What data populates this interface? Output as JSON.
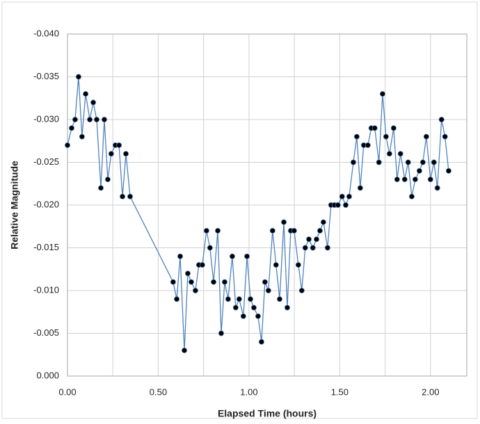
{
  "chart_data": {
    "type": "line",
    "x_label": "Elapsed Time (hours)",
    "y_label": "Relative Magnitude",
    "line_color": "#4f81bd",
    "marker_color": "#000000",
    "grid": true,
    "xlim": [
      0,
      2.2
    ],
    "ylim": [
      0,
      -0.04
    ],
    "xticks": [
      {
        "value": 0,
        "label": "0.00"
      },
      {
        "value": 0.5,
        "label": "0.50"
      },
      {
        "value": 1,
        "label": "1.00"
      },
      {
        "value": 1.5,
        "label": "1.50"
      },
      {
        "value": 2,
        "label": "2.00"
      }
    ],
    "x_minor_ticks": [
      0.25,
      0.75,
      1.25,
      1.75
    ],
    "yticks": [
      {
        "value": 0,
        "label": "0.000"
      },
      {
        "value": -0.005,
        "label": "-0.005"
      },
      {
        "value": -0.01,
        "label": "-0.010"
      },
      {
        "value": -0.015,
        "label": "-0.015"
      },
      {
        "value": -0.02,
        "label": "-0.020"
      },
      {
        "value": -0.025,
        "label": "-0.025"
      },
      {
        "value": -0.03,
        "label": "-0.030"
      },
      {
        "value": -0.035,
        "label": "-0.035"
      },
      {
        "value": -0.04,
        "label": "-0.040"
      }
    ],
    "x": [
      0,
      0.023,
      0.042,
      0.061,
      0.08,
      0.1,
      0.123,
      0.142,
      0.161,
      0.184,
      0.203,
      0.222,
      0.241,
      0.264,
      0.284,
      0.303,
      0.322,
      0.345,
      0.582,
      0.602,
      0.621,
      0.644,
      0.663,
      0.682,
      0.705,
      0.724,
      0.743,
      0.766,
      0.785,
      0.805,
      0.828,
      0.847,
      0.866,
      0.885,
      0.908,
      0.927,
      0.946,
      0.969,
      0.989,
      1.008,
      1.027,
      1.05,
      1.069,
      1.088,
      1.107,
      1.13,
      1.149,
      1.169,
      1.192,
      1.211,
      1.23,
      1.249,
      1.272,
      1.291,
      1.31,
      1.33,
      1.352,
      1.372,
      1.391,
      1.41,
      1.433,
      1.452,
      1.471,
      1.49,
      1.513,
      1.533,
      1.552,
      1.575,
      1.594,
      1.613,
      1.632,
      1.655,
      1.674,
      1.693,
      1.716,
      1.736,
      1.755,
      1.774,
      1.797,
      1.816,
      1.835,
      1.858,
      1.877,
      1.897,
      1.916,
      1.939,
      1.958,
      1.977,
      2.0,
      2.019,
      2.038,
      2.061,
      2.08,
      2.1
    ],
    "values": [
      -0.027,
      -0.029,
      -0.03,
      -0.035,
      -0.028,
      -0.033,
      -0.03,
      -0.032,
      -0.03,
      -0.022,
      -0.03,
      -0.023,
      -0.026,
      -0.027,
      -0.027,
      -0.021,
      -0.026,
      -0.021,
      -0.011,
      -0.009,
      -0.014,
      -0.003,
      -0.012,
      -0.011,
      -0.01,
      -0.013,
      -0.013,
      -0.017,
      -0.015,
      -0.011,
      -0.017,
      -0.005,
      -0.011,
      -0.009,
      -0.014,
      -0.008,
      -0.009,
      -0.007,
      -0.014,
      -0.009,
      -0.008,
      -0.007,
      -0.004,
      -0.011,
      -0.01,
      -0.017,
      -0.013,
      -0.009,
      -0.018,
      -0.008,
      -0.017,
      -0.017,
      -0.013,
      -0.01,
      -0.015,
      -0.016,
      -0.015,
      -0.016,
      -0.017,
      -0.018,
      -0.015,
      -0.02,
      -0.02,
      -0.02,
      -0.021,
      -0.02,
      -0.021,
      -0.025,
      -0.028,
      -0.022,
      -0.027,
      -0.027,
      -0.029,
      -0.029,
      -0.025,
      -0.033,
      -0.028,
      -0.026,
      -0.029,
      -0.023,
      -0.026,
      -0.023,
      -0.025,
      -0.021,
      -0.023,
      -0.024,
      -0.025,
      -0.028,
      -0.023,
      -0.025,
      -0.022,
      -0.03,
      -0.028,
      -0.024
    ]
  }
}
